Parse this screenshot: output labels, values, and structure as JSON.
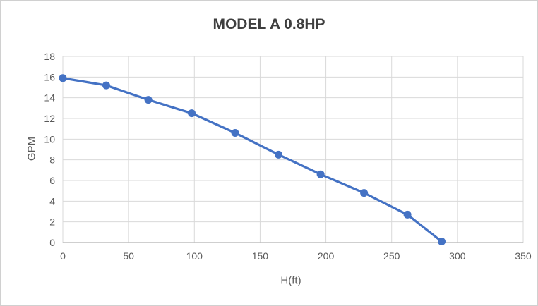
{
  "window": {
    "background_color": "#ffffff",
    "border_color": "#d0d0d0"
  },
  "chart_data": {
    "type": "line",
    "title": "MODEL A 0.8HP",
    "xlabel": "H(ft)",
    "ylabel": "GPM",
    "x": [
      0,
      33,
      65,
      98,
      131,
      164,
      196,
      229,
      262,
      288
    ],
    "y": [
      15.9,
      15.2,
      13.8,
      12.5,
      10.6,
      8.5,
      6.6,
      4.8,
      2.7,
      0.1
    ],
    "xlim": [
      0,
      350
    ],
    "ylim": [
      0,
      18
    ],
    "x_ticks": [
      0,
      50,
      100,
      150,
      200,
      250,
      300,
      350
    ],
    "y_ticks": [
      0,
      2,
      4,
      6,
      8,
      10,
      12,
      14,
      16,
      18
    ],
    "grid": true,
    "legend": "none",
    "marker": "circle",
    "line_color": "#4472C4",
    "gridline_color": "#D9D9D9",
    "axis_line_color": "#BFBFBF",
    "tick_label_color": "#595959",
    "title_color": "#3f3f3f"
  }
}
